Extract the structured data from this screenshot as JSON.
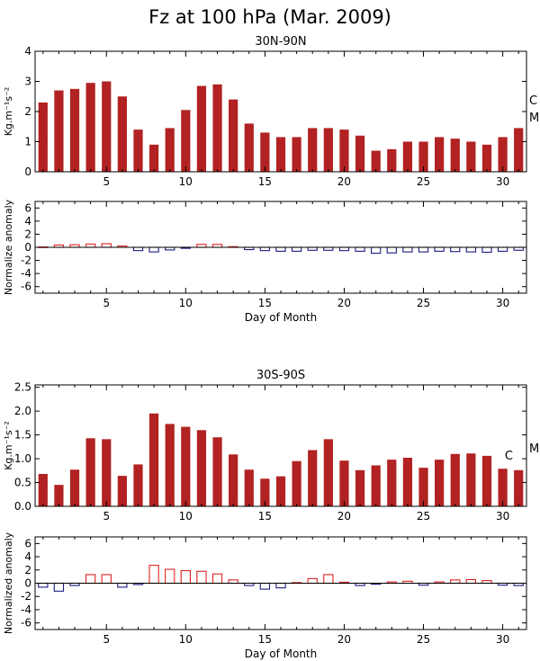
{
  "title": "Fz at 100 hPa (Mar. 2009)",
  "colors": {
    "bar": "#b22222",
    "pos_outline": "#dd2222",
    "neg_outline": "#1a1a80",
    "axis": "#000000"
  },
  "chart_data": [
    {
      "type": "bar",
      "title": "30N-90N",
      "ylabel": "Kg.m⁻¹s⁻²",
      "ylim": [
        0,
        4
      ],
      "yticks": [
        0,
        1,
        2,
        3,
        4
      ],
      "xlim": [
        0.5,
        31.5
      ],
      "xticks": [
        5,
        10,
        15,
        20,
        25,
        30
      ],
      "x": [
        1,
        2,
        3,
        4,
        5,
        6,
        7,
        8,
        9,
        10,
        11,
        12,
        13,
        14,
        15,
        16,
        17,
        18,
        19,
        20,
        21,
        22,
        23,
        24,
        25,
        26,
        27,
        28,
        29,
        30,
        31
      ],
      "values": [
        2.3,
        2.7,
        2.75,
        2.95,
        3.0,
        2.5,
        1.4,
        0.9,
        1.45,
        2.05,
        2.85,
        2.9,
        2.4,
        1.6,
        1.3,
        1.15,
        1.15,
        1.45,
        1.45,
        1.4,
        1.2,
        0.7,
        0.75,
        1.0,
        1.0,
        1.15,
        1.1,
        1.0,
        0.9,
        1.15,
        1.45
      ],
      "side_labels": [
        "C",
        "M"
      ]
    },
    {
      "type": "bar",
      "ylabel": "Normalize anomaly",
      "xlabel": "Day of Month",
      "ylim": [
        -7,
        7
      ],
      "yticks": [
        -6,
        -4,
        -2,
        0,
        2,
        4,
        6
      ],
      "xlim": [
        0.5,
        31.5
      ],
      "xticks": [
        5,
        10,
        15,
        20,
        25,
        30
      ],
      "x": [
        1,
        2,
        3,
        4,
        5,
        6,
        7,
        8,
        9,
        10,
        11,
        12,
        13,
        14,
        15,
        16,
        17,
        18,
        19,
        20,
        21,
        22,
        23,
        24,
        25,
        26,
        27,
        28,
        29,
        30,
        31
      ],
      "values": [
        0.05,
        0.35,
        0.4,
        0.5,
        0.55,
        0.2,
        -0.5,
        -0.7,
        -0.4,
        -0.15,
        0.45,
        0.45,
        0.1,
        -0.35,
        -0.5,
        -0.6,
        -0.6,
        -0.45,
        -0.45,
        -0.5,
        -0.6,
        -0.9,
        -0.85,
        -0.7,
        -0.7,
        -0.6,
        -0.65,
        -0.7,
        -0.75,
        -0.6,
        -0.45
      ]
    },
    {
      "type": "bar",
      "title": "30S-90S",
      "ylabel": "Kg.m⁻¹s⁻²",
      "ylim": [
        0,
        2.55
      ],
      "yticks": [
        0.0,
        0.5,
        1.0,
        1.5,
        2.0,
        2.5
      ],
      "xlim": [
        0.5,
        31.5
      ],
      "xticks": [
        5,
        10,
        15,
        20,
        25,
        30
      ],
      "x": [
        1,
        2,
        3,
        4,
        5,
        6,
        7,
        8,
        9,
        10,
        11,
        12,
        13,
        14,
        15,
        16,
        17,
        18,
        19,
        20,
        21,
        22,
        23,
        24,
        25,
        26,
        27,
        28,
        29,
        30,
        31
      ],
      "values": [
        0.68,
        0.45,
        0.77,
        1.43,
        1.41,
        0.64,
        0.88,
        1.95,
        1.73,
        1.67,
        1.6,
        1.45,
        1.09,
        0.77,
        0.58,
        0.63,
        0.95,
        1.18,
        1.41,
        0.96,
        0.76,
        0.86,
        0.98,
        1.02,
        0.81,
        0.98,
        1.1,
        1.11,
        1.06,
        0.79,
        0.76
      ],
      "side_labels": [
        "C",
        "M"
      ]
    },
    {
      "type": "bar",
      "ylabel": "Normalized anomaly",
      "xlabel": "Day of Month",
      "ylim": [
        -7,
        7
      ],
      "yticks": [
        -6,
        -4,
        -2,
        0,
        2,
        4,
        6
      ],
      "xlim": [
        0.5,
        31.5
      ],
      "xticks": [
        5,
        10,
        15,
        20,
        25,
        30
      ],
      "x": [
        1,
        2,
        3,
        4,
        5,
        6,
        7,
        8,
        9,
        10,
        11,
        12,
        13,
        14,
        15,
        16,
        17,
        18,
        19,
        20,
        21,
        22,
        23,
        24,
        25,
        26,
        27,
        28,
        29,
        30,
        31
      ],
      "values": [
        -0.6,
        -1.2,
        -0.35,
        1.3,
        1.3,
        -0.6,
        -0.2,
        2.7,
        2.1,
        1.9,
        1.8,
        1.4,
        0.5,
        -0.35,
        -0.9,
        -0.7,
        0.1,
        0.7,
        1.3,
        0.15,
        -0.35,
        -0.15,
        0.2,
        0.3,
        -0.3,
        0.2,
        0.5,
        0.55,
        0.4,
        -0.3,
        -0.35
      ]
    }
  ]
}
